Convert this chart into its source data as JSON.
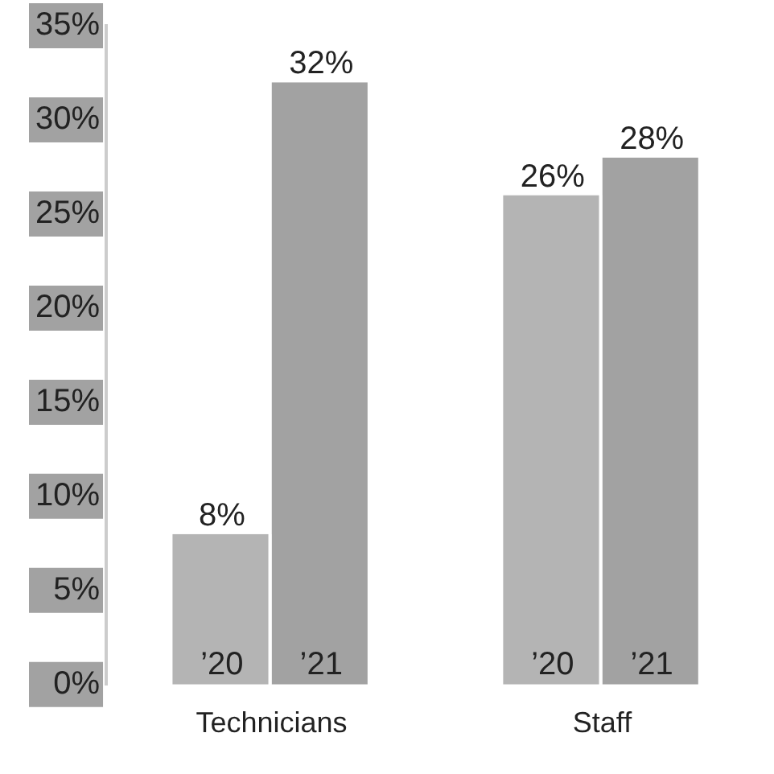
{
  "chart_data": {
    "type": "bar",
    "categories": [
      "Technicians",
      "Staff"
    ],
    "series": [
      {
        "name": "’20",
        "color": "#b4b4b4",
        "values": [
          8,
          26
        ],
        "value_labels": [
          "8%",
          "26%"
        ]
      },
      {
        "name": "’21",
        "color": "#a2a2a2",
        "values": [
          32,
          28
        ],
        "value_labels": [
          "32%",
          "28%"
        ]
      }
    ],
    "ylim": [
      0,
      35
    ],
    "yticks": [
      {
        "value": 0,
        "label": "0%"
      },
      {
        "value": 5,
        "label": "5%"
      },
      {
        "value": 10,
        "label": "10%"
      },
      {
        "value": 15,
        "label": "15%"
      },
      {
        "value": 20,
        "label": "20%"
      },
      {
        "value": 25,
        "label": "25%"
      },
      {
        "value": 30,
        "label": "30%"
      },
      {
        "value": 35,
        "label": "35%"
      }
    ],
    "grid": false,
    "legend": false
  }
}
